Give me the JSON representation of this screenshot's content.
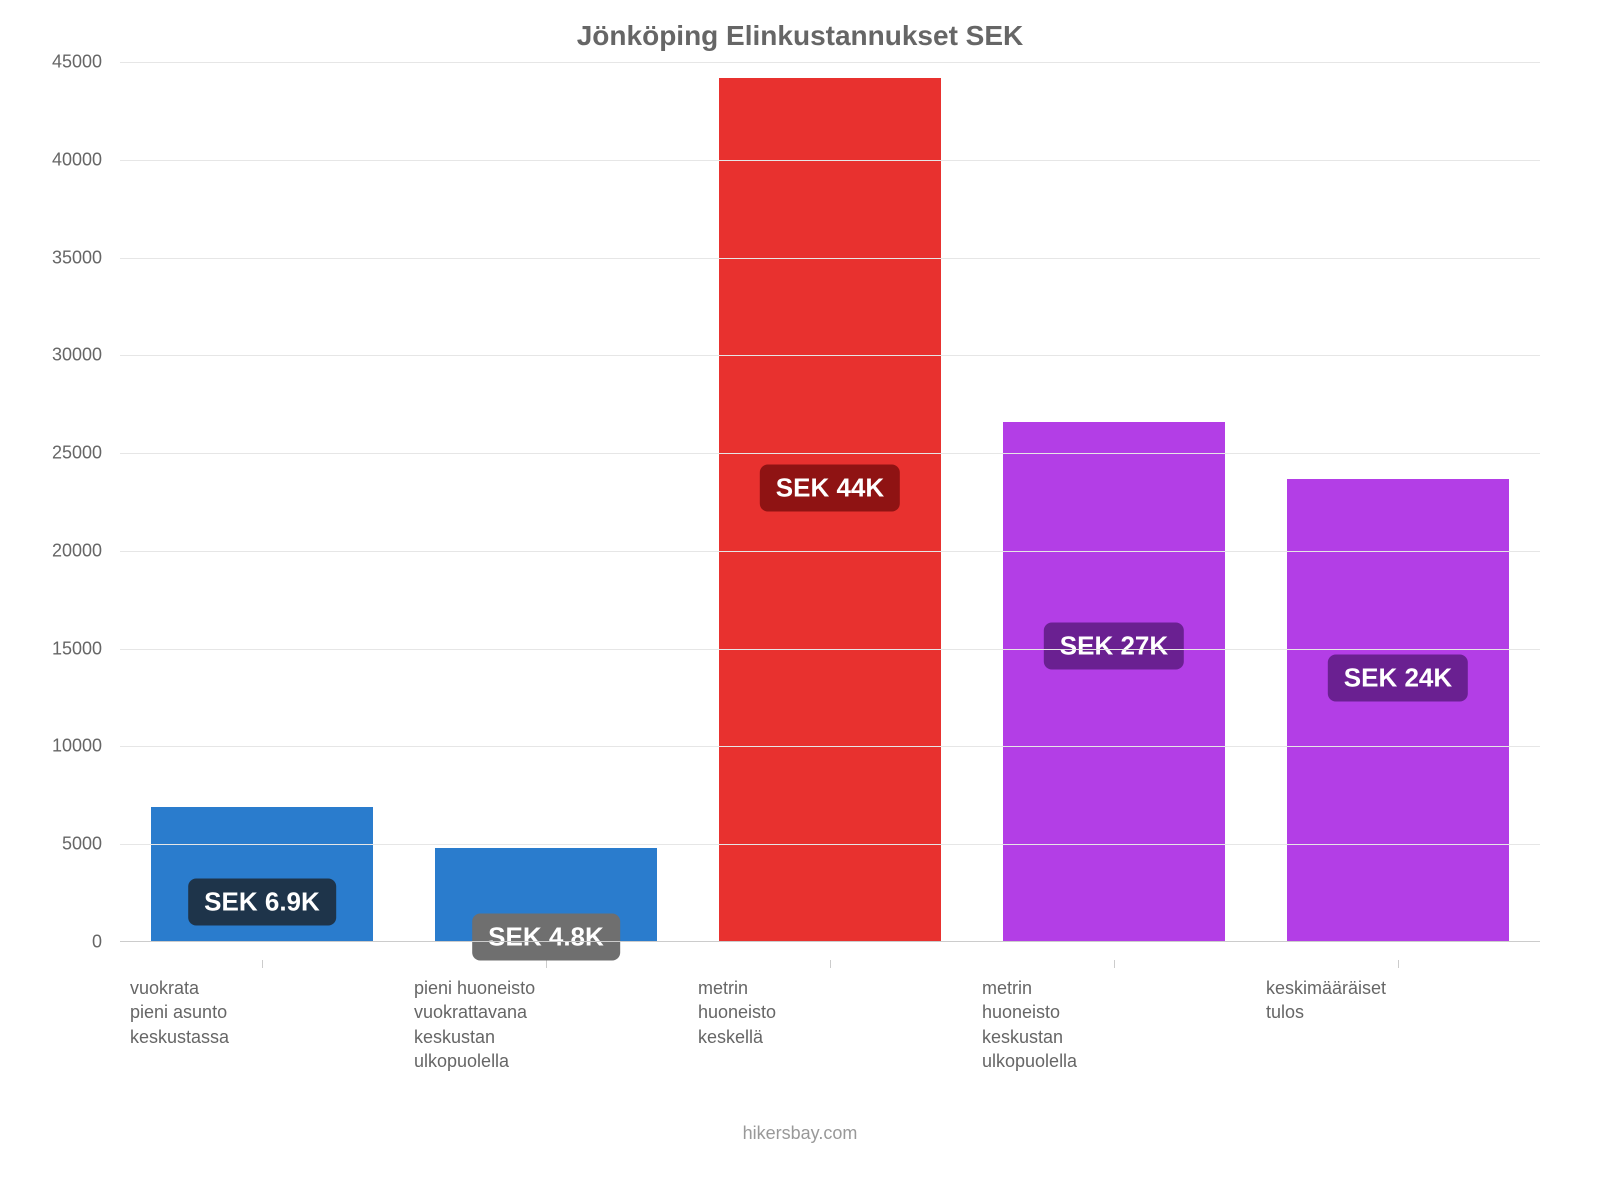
{
  "chart": {
    "type": "bar",
    "title": "Jönköping Elinkustannukset SEK",
    "title_color": "#666666",
    "title_fontsize": 28,
    "background_color": "#ffffff",
    "grid_color": "#e6e6e6",
    "axis_label_color": "#666666",
    "axis_label_fontsize": 18,
    "y": {
      "min": 0,
      "max": 45000,
      "tick_step": 5000,
      "ticks": [
        0,
        5000,
        10000,
        15000,
        20000,
        25000,
        30000,
        35000,
        40000,
        45000
      ]
    },
    "bars": [
      {
        "category_lines": [
          "vuokrata",
          "pieni asunto",
          "keskustassa"
        ],
        "value": 6900,
        "value_label": "SEK 6.9K",
        "bar_color": "#2a7ccd",
        "label_bg": "#1e344a",
        "label_y_frac": 0.7
      },
      {
        "category_lines": [
          "pieni huoneisto",
          "vuokrattavana",
          "keskustan",
          "ulkopuolella"
        ],
        "value": 4800,
        "value_label": "SEK 4.8K",
        "bar_color": "#2a7ccd",
        "label_bg": "#6f6f6f",
        "label_y_frac": 0.95
      },
      {
        "category_lines": [
          "metrin",
          "huoneisto",
          "keskellä"
        ],
        "value": 44200,
        "value_label": "SEK 44K",
        "bar_color": "#e8312f",
        "label_bg": "#8f1313",
        "label_y_frac": 0.475
      },
      {
        "category_lines": [
          "metrin",
          "huoneisto",
          "keskustan",
          "ulkopuolella"
        ],
        "value": 26600,
        "value_label": "SEK 27K",
        "bar_color": "#b33ee6",
        "label_bg": "#6a2091",
        "label_y_frac": 0.43
      },
      {
        "category_lines": [
          "keskimääräiset",
          "tulos"
        ],
        "value": 23700,
        "value_label": "SEK 24K",
        "bar_color": "#b33ee6",
        "label_bg": "#6a2091",
        "label_y_frac": 0.43
      }
    ],
    "attribution": "hikersbay.com",
    "attribution_color": "#999999"
  }
}
